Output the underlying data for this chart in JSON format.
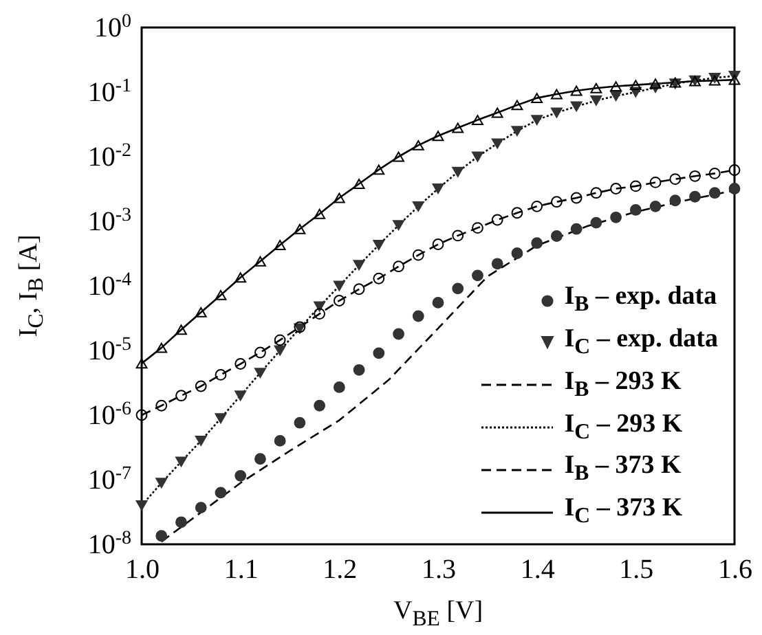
{
  "chart_data": {
    "type": "line",
    "xlabel": "V$_{BE}$ [V]",
    "ylabel": "I$_{C}$, I$_{B}$ [A]",
    "log": "y",
    "grid": false,
    "legend": "bottom right",
    "xlim": [
      1.0,
      1.6
    ],
    "xticks": [
      {
        "value": 1.0,
        "label": "1.0"
      },
      1.1,
      1.2,
      1.3,
      1.4,
      1.5,
      1.6
    ],
    "ylim": [
      1e-08,
      1
    ],
    "yticks": [
      {
        "value": 1e-08,
        "label": "10$^{-8}$"
      },
      {
        "value": 1e-07,
        "label": "10$^{-7}$"
      },
      {
        "value": 1e-06,
        "label": "10$^{-6}$"
      },
      {
        "value": 1e-05,
        "label": "10$^{-5}$"
      },
      {
        "value": 0.0001,
        "label": "10$^{-4}$"
      },
      {
        "value": 0.001,
        "label": "10$^{-3}$"
      },
      {
        "value": 0.01,
        "label": "10$^{-2}$"
      },
      {
        "value": 0.1,
        "label": "10$^{-1}$"
      },
      {
        "value": 1,
        "label": "10$^{0}$"
      }
    ],
    "x": [
      1.0,
      1.02,
      1.04,
      1.06,
      1.08,
      1.1,
      1.12,
      1.14,
      1.16,
      1.18,
      1.2,
      1.22,
      1.24,
      1.26,
      1.28,
      1.3,
      1.32,
      1.34,
      1.36,
      1.38,
      1.4,
      1.42,
      1.44,
      1.46,
      1.48,
      1.5,
      1.52,
      1.54,
      1.56,
      1.58,
      1.6
    ],
    "series": [
      {
        "name": "I$_{B}$ – exp. data",
        "type": "scatter",
        "marker": "circle",
        "color": "#333333",
        "x": [
          1.02,
          1.04,
          1.06,
          1.08,
          1.1,
          1.12,
          1.14,
          1.16,
          1.18,
          1.2,
          1.22,
          1.24,
          1.26,
          1.28,
          1.3,
          1.32,
          1.34,
          1.36,
          1.38,
          1.4,
          1.42,
          1.44,
          1.46,
          1.48,
          1.5,
          1.52,
          1.54,
          1.56,
          1.58,
          1.6
        ],
        "values": [
          1.35e-08,
          2.2e-08,
          3.7e-08,
          6.3e-08,
          1.15e-07,
          2.1e-07,
          4e-07,
          7.6e-07,
          1.4e-06,
          2.7e-06,
          5e-06,
          9.1e-06,
          1.8e-05,
          3.4e-05,
          5.5e-05,
          9.1e-05,
          0.000145,
          0.00022,
          0.00032,
          0.00046,
          0.00059,
          0.00076,
          0.00095,
          0.00115,
          0.0015,
          0.0017,
          0.0021,
          0.0024,
          0.00275,
          0.0032
        ]
      },
      {
        "name": "I$_{C}$ – exp. data",
        "type": "scatter",
        "marker": "triangle",
        "color": "#333333",
        "values": [
          4e-08,
          8.9e-08,
          1.9e-07,
          4e-07,
          8.9e-07,
          2e-06,
          4.5e-06,
          1e-05,
          2.2e-05,
          4.8e-05,
          0.0001,
          0.00021,
          0.00043,
          0.00087,
          0.0017,
          0.0032,
          0.0058,
          0.01,
          0.016,
          0.025,
          0.037,
          0.048,
          0.06,
          0.074,
          0.087,
          0.1,
          0.117,
          0.135,
          0.151,
          0.166,
          0.178
        ]
      },
      {
        "type": "scatter",
        "marker": "circle",
        "color": "#000000",
        "values": [
          1e-06,
          1.4e-06,
          2e-06,
          2.8e-06,
          4.2e-06,
          6.2e-06,
          9.3e-06,
          1.45e-05,
          2.3e-05,
          3.7e-05,
          5.9e-05,
          8.9e-05,
          0.00013,
          0.0002,
          0.0003,
          0.00044,
          0.0006,
          0.00079,
          0.00105,
          0.00135,
          0.0017,
          0.002,
          0.0023,
          0.00275,
          0.0032,
          0.0035,
          0.004,
          0.0045,
          0.005,
          0.0055,
          0.0062
        ]
      },
      {
        "type": "scatter",
        "marker": "triangle",
        "color": "#000000",
        "values": [
          6.3e-06,
          1.1e-05,
          2.1e-05,
          3.9e-05,
          7.2e-05,
          0.000135,
          0.00024,
          0.00043,
          0.00076,
          0.0013,
          0.0023,
          0.0038,
          0.0063,
          0.01,
          0.015,
          0.021,
          0.028,
          0.037,
          0.048,
          0.063,
          0.081,
          0.093,
          0.105,
          0.115,
          0.123,
          0.129,
          0.135,
          0.141,
          0.148,
          0.151,
          0.155
        ]
      },
      {
        "name": "I$_{B}$ – 293 K",
        "type": "line",
        "line_style": "dashed",
        "color": "#000000",
        "x": [
          1.02,
          1.05,
          1.1,
          1.15,
          1.2,
          1.25,
          1.3,
          1.35,
          1.4,
          1.45,
          1.5,
          1.55,
          1.6
        ],
        "values": [
          1.1e-08,
          2.4e-08,
          8.9e-08,
          2.8e-07,
          8.3e-07,
          3.5e-06,
          2.2e-05,
          0.00014,
          0.00042,
          0.00083,
          0.0014,
          0.0021,
          0.003
        ]
      },
      {
        "name": "I$_{C}$ – 293 K",
        "type": "line",
        "line_style": "dotted",
        "color": "#000000",
        "values": [
          4e-08,
          8.9e-08,
          1.9e-07,
          4e-07,
          8.9e-07,
          2e-06,
          4.5e-06,
          1e-05,
          2.2e-05,
          4.8e-05,
          0.0001,
          0.00021,
          0.00043,
          0.00087,
          0.0017,
          0.0032,
          0.0058,
          0.01,
          0.016,
          0.025,
          0.037,
          0.048,
          0.06,
          0.074,
          0.087,
          0.1,
          0.117,
          0.135,
          0.151,
          0.166,
          0.178
        ]
      },
      {
        "name": "I$_{B}$ – 373 K",
        "type": "line",
        "line_style": "dashed",
        "color": "#000000",
        "values": [
          1e-06,
          1.4e-06,
          2e-06,
          2.8e-06,
          4.2e-06,
          6.2e-06,
          9.3e-06,
          1.45e-05,
          2.3e-05,
          3.7e-05,
          5.9e-05,
          8.9e-05,
          0.00013,
          0.0002,
          0.0003,
          0.00044,
          0.0006,
          0.00079,
          0.00105,
          0.00135,
          0.0017,
          0.002,
          0.0023,
          0.00275,
          0.0032,
          0.0035,
          0.004,
          0.0045,
          0.005,
          0.0055,
          0.0062
        ]
      },
      {
        "name": "I$_{C}$ – 373 K",
        "type": "line",
        "line_style": "solid",
        "color": "#000000",
        "values": [
          6.3e-06,
          1.1e-05,
          2.1e-05,
          3.9e-05,
          7.2e-05,
          0.000135,
          0.00024,
          0.00043,
          0.00076,
          0.0013,
          0.0023,
          0.0038,
          0.0063,
          0.01,
          0.015,
          0.021,
          0.028,
          0.037,
          0.048,
          0.063,
          0.081,
          0.093,
          0.105,
          0.115,
          0.123,
          0.129,
          0.135,
          0.141,
          0.148,
          0.151,
          0.155
        ]
      }
    ]
  }
}
